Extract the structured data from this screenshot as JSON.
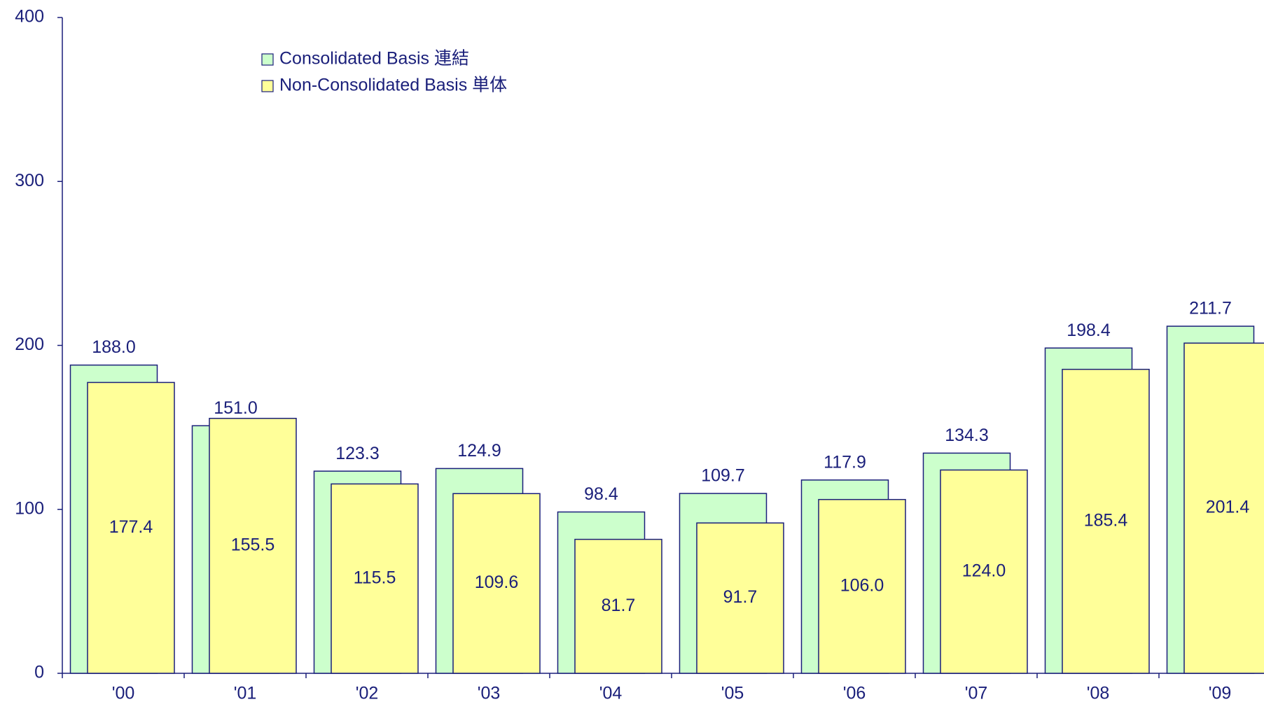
{
  "chart_data": {
    "type": "bar",
    "categories": [
      "'00",
      "'01",
      "'02",
      "'03",
      "'04",
      "'05",
      "'06",
      "'07",
      "'08",
      "'09"
    ],
    "series": [
      {
        "name": "Consolidated Basis 連結",
        "color": "#ccffcc",
        "values": [
          188.0,
          151.0,
          123.3,
          124.9,
          98.4,
          109.7,
          117.9,
          134.3,
          198.4,
          211.7
        ],
        "value_labels": [
          "188.0",
          "151.0",
          "123.3",
          "124.9",
          "98.4",
          "109.7",
          "117.9",
          "134.3",
          "198.4",
          "211.7"
        ]
      },
      {
        "name": "Non-Consolidated Basis 単体",
        "color": "#ffff99",
        "values": [
          177.4,
          155.5,
          115.5,
          109.6,
          81.7,
          91.7,
          106.0,
          124.0,
          185.4,
          201.4
        ],
        "value_labels": [
          "177.4",
          "155.5",
          "115.5",
          "109.6",
          "81.7",
          "91.7",
          "106.0",
          "124.0",
          "185.4",
          "201.4"
        ]
      }
    ],
    "ylim": [
      0,
      400
    ],
    "yticks": [
      0,
      100,
      200,
      300,
      400
    ],
    "grid": false,
    "legend": "top-left"
  }
}
